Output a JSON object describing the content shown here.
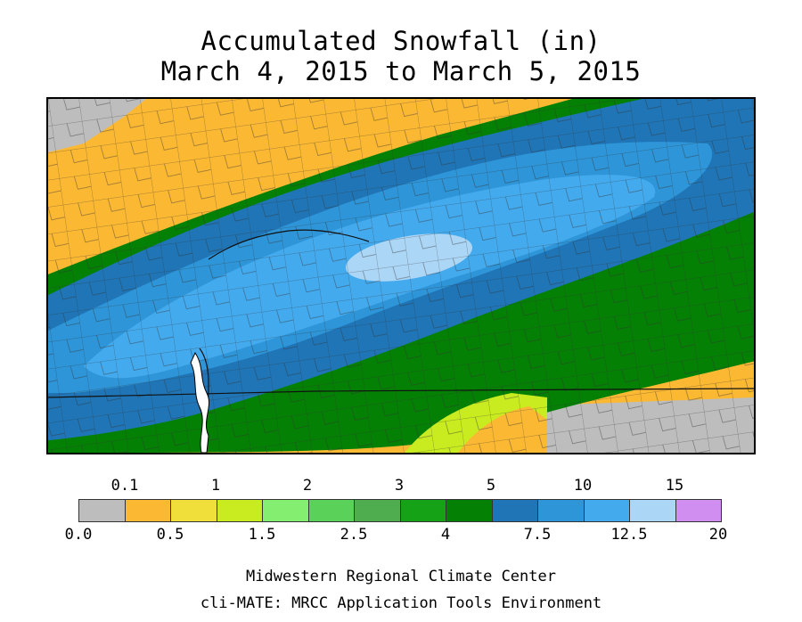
{
  "title_line1": "Accumulated Snowfall (in)",
  "title_line2": "March 4, 2015 to March 5, 2015",
  "legend": {
    "top_labels": [
      "0.1",
      "1",
      "2",
      "3",
      "5",
      "10",
      "15"
    ],
    "bottom_labels": [
      "0.0",
      "0.5",
      "1.5",
      "2.5",
      "4",
      "7.5",
      "12.5",
      "20"
    ],
    "colors": [
      "#bdbdbd",
      "#fbb833",
      "#f0df3a",
      "#c9ec20",
      "#84ee70",
      "#5ad25a",
      "#4fad4f",
      "#16a216",
      "#048004",
      "#1f75b6",
      "#2e95d8",
      "#44aaee",
      "#acd6f6",
      "#d08ef0"
    ]
  },
  "footer_line1": "Midwestern Regional Climate Center",
  "footer_line2": "cli-MATE: MRCC Application Tools Environment"
}
